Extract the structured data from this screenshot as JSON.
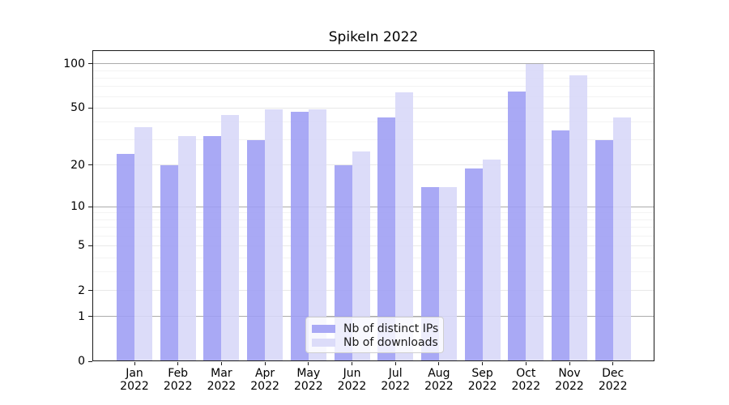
{
  "chart_data": {
    "type": "bar",
    "title": "SpikeIn 2022",
    "xlabel": "",
    "ylabel": "",
    "year": "2022",
    "categories": [
      "Jan",
      "Feb",
      "Mar",
      "Apr",
      "May",
      "Jun",
      "Jul",
      "Aug",
      "Sep",
      "Oct",
      "Nov",
      "Dec"
    ],
    "series": [
      {
        "name": "Nb of distinct IPs",
        "color": "#9d9df4",
        "values": [
          24,
          20,
          32,
          30,
          47,
          20,
          43,
          14,
          19,
          65,
          35,
          30
        ]
      },
      {
        "name": "Nb of downloads",
        "color": "#d7d7f8",
        "values": [
          37,
          32,
          45,
          49,
          49,
          25,
          64,
          14,
          22,
          100,
          84,
          43
        ]
      }
    ],
    "yscale": "log1p",
    "ylim": [
      0,
      124
    ],
    "yticks": [
      0,
      1,
      2,
      5,
      10,
      20,
      50,
      100
    ],
    "power_ticks": [
      1,
      10,
      100
    ],
    "minor_ticks": [
      3,
      4,
      6,
      7,
      8,
      9,
      30,
      40,
      60,
      70,
      80,
      90
    ],
    "grid": true,
    "legend_position": "lower center"
  }
}
